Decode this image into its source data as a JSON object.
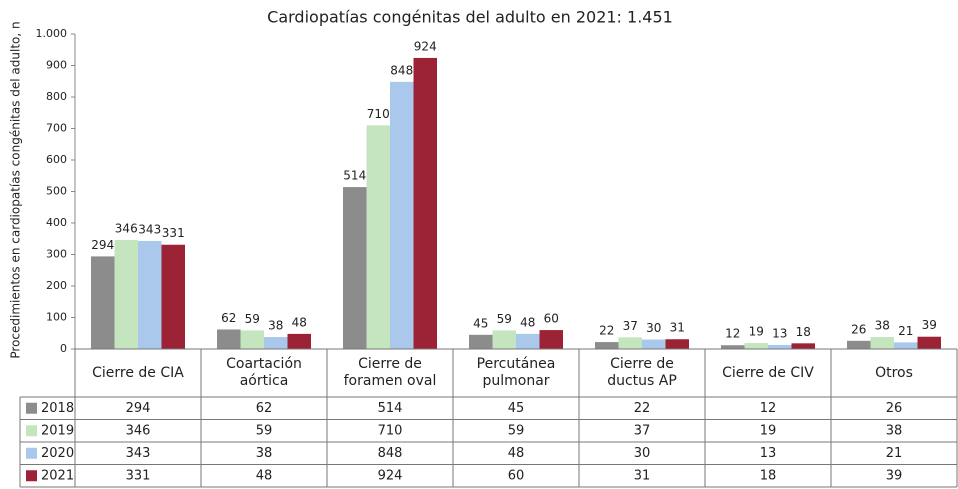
{
  "chart_data": {
    "type": "bar",
    "title": "Cardiopatías congénitas del adulto en 2021: 1.451",
    "y_label": "Procedimientos en cardiopatías congénitas del adulto, n",
    "categories": [
      "Cierre de CIA",
      "Coartación aórtica",
      "Cierre de foramen oval",
      "Percutánea pulmonar",
      "Cierre de ductus AP",
      "Cierre de CIV",
      "Otros"
    ],
    "series": [
      {
        "name": "2018",
        "color": "#8c8c8c",
        "values": [
          294,
          62,
          514,
          45,
          22,
          12,
          26
        ]
      },
      {
        "name": "2019",
        "color": "#c5e5bf",
        "values": [
          346,
          59,
          710,
          59,
          37,
          19,
          38
        ]
      },
      {
        "name": "2020",
        "color": "#a9c8ec",
        "values": [
          343,
          38,
          848,
          48,
          30,
          13,
          21
        ]
      },
      {
        "name": "2021",
        "color": "#9b2335",
        "values": [
          331,
          48,
          924,
          60,
          31,
          18,
          39
        ]
      }
    ],
    "ylim": [
      0,
      1000
    ],
    "yticks": [
      0,
      100,
      200,
      300,
      400,
      500,
      600,
      700,
      800,
      900,
      {
        "value": 1000,
        "label": "1.000"
      }
    ],
    "data_table": true
  }
}
